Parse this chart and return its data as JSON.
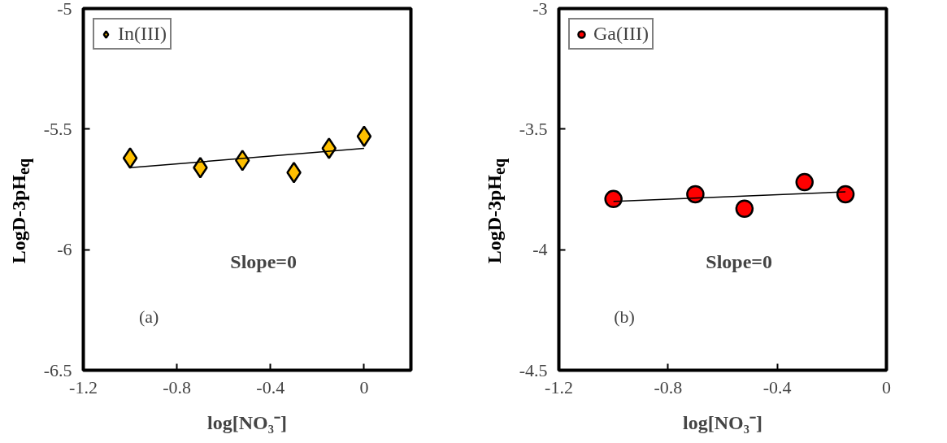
{
  "chart_data": [
    {
      "type": "scatter",
      "xlabel": "log[NO₃⁻]",
      "ylabel": "LogD-3pH$_{eq}$",
      "xlim": [
        -1.2,
        0.2
      ],
      "xticks": [
        -1.2,
        -0.8,
        -0.4,
        0
      ],
      "ylim": [
        -6.5,
        -5
      ],
      "yticks": [
        -6.5,
        -6,
        -5.5,
        -5
      ],
      "legend": "top left",
      "annotations": [
        "Slope=0",
        "(a)"
      ],
      "series": [
        {
          "name": "In(III)",
          "color": "#ffc000",
          "marker": "diamond",
          "x": [
            -1,
            -0.7,
            -0.52,
            -0.3,
            -0.15,
            0
          ],
          "values": [
            -5.62,
            -5.66,
            -5.63,
            -5.68,
            -5.58,
            -5.53
          ]
        },
        {
          "type": "line",
          "color": "#000000",
          "marker": "none",
          "x": [
            -1,
            0
          ],
          "values": [
            -5.66,
            -5.58
          ]
        }
      ]
    },
    {
      "type": "scatter",
      "xlabel": "log[NO₃⁻]",
      "ylabel": "LogD-3pH$_{eq}$",
      "xlim": [
        -1.2,
        0
      ],
      "xticks": [
        -1.2,
        -0.8,
        -0.4,
        0
      ],
      "ylim": [
        -4.5,
        -3
      ],
      "yticks": [
        -4.5,
        -4,
        -3.5,
        -3
      ],
      "legend": "top left",
      "annotations": [
        "Slope=0",
        "(b)"
      ],
      "series": [
        {
          "name": "Ga(III)",
          "color": "#ff0000",
          "marker": "circle",
          "x": [
            -1,
            -0.7,
            -0.52,
            -0.3,
            -0.15
          ],
          "values": [
            -3.79,
            -3.77,
            -3.83,
            -3.72,
            -3.77
          ]
        },
        {
          "type": "line",
          "color": "#000000",
          "marker": "none",
          "x": [
            -1,
            -0.15
          ],
          "values": [
            -3.8,
            -3.76
          ]
        }
      ]
    }
  ]
}
